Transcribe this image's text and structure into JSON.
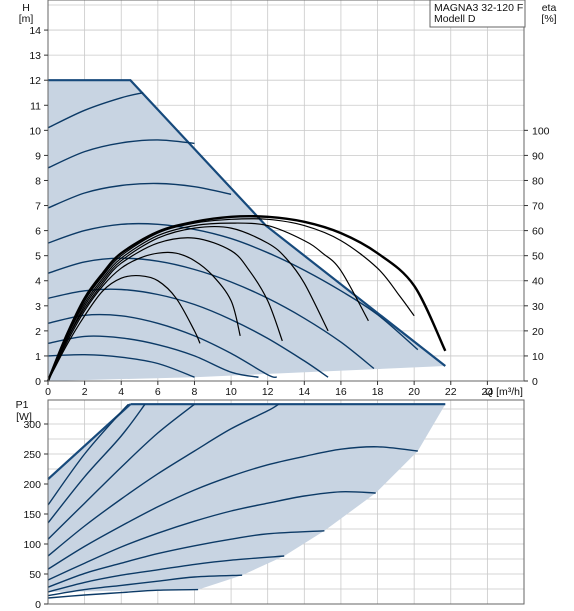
{
  "colors": {
    "area_fill": "#c8d4e2",
    "outline": "#174a7c",
    "curve": "#0c3a66",
    "efficiency": "#000000",
    "grid": "#c9c9c9",
    "frame": "#666666"
  },
  "title_box": {
    "line1": "MAGNA3 32-120 F",
    "line2": "Modell D"
  },
  "chart_data": [
    {
      "type": "line",
      "name": "head",
      "xlabel": "Q [m³/h]",
      "ylabel_line1": "H",
      "ylabel_line2": "[m]",
      "y2label_line1": "eta",
      "y2label_line2": "[%]",
      "xlim": [
        0,
        26
      ],
      "ylim": [
        0,
        15.2
      ],
      "y2lim": [
        0,
        152
      ],
      "grid": true,
      "x_ticks": [
        "0",
        "2",
        "4",
        "6",
        "8",
        "10",
        "12",
        "14",
        "16",
        "18",
        "20",
        "22",
        "24"
      ],
      "y_ticks": [
        "0",
        "1",
        "2",
        "3",
        "4",
        "5",
        "6",
        "7",
        "8",
        "9",
        "10",
        "11",
        "12",
        "13",
        "14"
      ],
      "y2_ticks": [
        "0",
        "10",
        "20",
        "30",
        "40",
        "50",
        "60",
        "70",
        "80",
        "90",
        "100"
      ],
      "operating_area": [
        [
          0,
          0
        ],
        [
          0,
          12
        ],
        [
          4.5,
          12
        ],
        [
          11.9,
          6.2
        ],
        [
          21.7,
          0.6
        ],
        [
          8,
          0.15
        ],
        [
          0,
          0
        ]
      ],
      "head_curves": [
        {
          "values": [
            [
              0,
              1.0
            ],
            [
              2,
              1.05
            ],
            [
              4,
              0.95
            ],
            [
              6,
              0.7
            ],
            [
              8,
              0.15
            ]
          ]
        },
        {
          "values": [
            [
              0,
              1.5
            ],
            [
              2,
              1.78
            ],
            [
              4,
              1.72
            ],
            [
              6,
              1.45
            ],
            [
              8,
              1.0
            ],
            [
              10,
              0.35
            ],
            [
              11.5,
              0.15
            ]
          ]
        },
        {
          "values": [
            [
              0,
              2.3
            ],
            [
              2,
              2.62
            ],
            [
              4,
              2.6
            ],
            [
              6,
              2.3
            ],
            [
              8,
              1.8
            ],
            [
              10,
              1.1
            ],
            [
              12,
              0.25
            ],
            [
              12.5,
              0.15
            ]
          ]
        },
        {
          "values": [
            [
              0,
              3.3
            ],
            [
              2,
              3.6
            ],
            [
              4,
              3.65
            ],
            [
              6,
              3.45
            ],
            [
              8,
              3.05
            ],
            [
              10,
              2.45
            ],
            [
              12,
              1.7
            ],
            [
              14,
              0.8
            ],
            [
              15.3,
              0.15
            ]
          ]
        },
        {
          "values": [
            [
              0,
              4.3
            ],
            [
              2,
              4.75
            ],
            [
              4,
              4.9
            ],
            [
              6,
              4.78
            ],
            [
              8,
              4.45
            ],
            [
              10,
              3.95
            ],
            [
              12,
              3.3
            ],
            [
              14,
              2.5
            ],
            [
              16,
              1.55
            ],
            [
              17.8,
              0.5
            ]
          ]
        },
        {
          "values": [
            [
              0,
              5.5
            ],
            [
              2,
              6.0
            ],
            [
              4,
              6.25
            ],
            [
              6,
              6.25
            ],
            [
              8,
              6.05
            ],
            [
              10,
              5.68
            ],
            [
              12,
              5.12
            ],
            [
              14,
              4.42
            ],
            [
              16,
              3.6
            ],
            [
              18,
              2.65
            ],
            [
              20.2,
              1.25
            ]
          ]
        },
        {
          "values": [
            [
              0,
              6.9
            ],
            [
              2,
              7.5
            ],
            [
              4,
              7.8
            ],
            [
              6,
              7.88
            ],
            [
              8,
              7.75
            ],
            [
              10,
              7.45
            ]
          ]
        },
        {
          "values": [
            [
              0,
              8.5
            ],
            [
              2,
              9.15
            ],
            [
              4,
              9.5
            ],
            [
              6,
              9.62
            ],
            [
              8,
              9.48
            ]
          ]
        },
        {
          "values": [
            [
              0,
              10.1
            ],
            [
              2,
              10.8
            ],
            [
              4,
              11.3
            ],
            [
              5.2,
              11.5
            ]
          ]
        }
      ],
      "efficiency_curves": [
        {
          "values": [
            [
              0,
              0
            ],
            [
              1,
              14
            ],
            [
              2,
              26
            ],
            [
              3,
              36
            ],
            [
              4,
              41
            ],
            [
              5,
              42
            ],
            [
              6,
              40
            ],
            [
              7,
              33
            ],
            [
              8,
              20
            ],
            [
              8.3,
              15
            ]
          ]
        },
        {
          "values": [
            [
              0,
              0
            ],
            [
              1,
              15
            ],
            [
              2,
              28
            ],
            [
              3,
              38
            ],
            [
              4,
              45
            ],
            [
              5,
              49
            ],
            [
              6,
              51
            ],
            [
              7,
              51
            ],
            [
              8,
              48
            ],
            [
              9,
              42
            ],
            [
              10,
              32
            ],
            [
              10.5,
              18
            ]
          ]
        },
        {
          "values": [
            [
              0,
              0
            ],
            [
              1,
              16
            ],
            [
              2,
              29
            ],
            [
              3,
              39
            ],
            [
              4,
              47
            ],
            [
              6,
              55
            ],
            [
              8,
              57
            ],
            [
              10,
              52
            ],
            [
              11,
              44
            ],
            [
              12,
              32
            ],
            [
              12.8,
              16
            ]
          ]
        },
        {
          "values": [
            [
              0,
              0
            ],
            [
              1,
              16
            ],
            [
              2,
              30
            ],
            [
              3,
              40
            ],
            [
              4,
              48
            ],
            [
              6,
              57
            ],
            [
              8,
              61
            ],
            [
              10,
              61
            ],
            [
              12,
              55
            ],
            [
              13,
              49
            ],
            [
              14,
              39
            ],
            [
              15.3,
              20
            ]
          ]
        },
        {
          "values": [
            [
              0,
              0
            ],
            [
              1,
              17
            ],
            [
              2,
              31
            ],
            [
              3,
              41
            ],
            [
              4,
              49
            ],
            [
              6,
              58
            ],
            [
              8,
              62
            ],
            [
              10,
              63
            ],
            [
              12,
              62
            ],
            [
              14,
              56
            ],
            [
              15,
              51
            ],
            [
              16,
              44
            ],
            [
              17.5,
              24
            ]
          ]
        },
        {
          "values": [
            [
              0,
              0
            ],
            [
              1,
              17
            ],
            [
              2,
              32
            ],
            [
              3,
              42
            ],
            [
              4,
              50
            ],
            [
              6,
              59
            ],
            [
              8,
              63
            ],
            [
              10,
              64.5
            ],
            [
              12,
              64.5
            ],
            [
              14,
              62
            ],
            [
              16,
              56
            ],
            [
              18,
              45
            ],
            [
              19.2,
              34
            ],
            [
              20,
              26
            ]
          ]
        },
        {
          "values": [
            [
              0,
              0
            ],
            [
              1,
              18
            ],
            [
              2,
              33
            ],
            [
              3,
              43
            ],
            [
              4,
              51
            ],
            [
              6,
              59.5
            ],
            [
              8,
              63.5
            ],
            [
              10,
              65.5
            ],
            [
              12,
              65.5
            ],
            [
              14,
              63.5
            ],
            [
              16,
              59
            ],
            [
              18,
              51
            ],
            [
              20,
              38
            ],
            [
              21.7,
              12
            ]
          ]
        }
      ]
    },
    {
      "type": "line",
      "name": "power",
      "ylabel_line1": "P1",
      "ylabel_line2": "[W]",
      "xlim": [
        0,
        26
      ],
      "ylim": [
        0,
        340
      ],
      "grid": true,
      "y_ticks": [
        "0",
        "50",
        "100",
        "150",
        "200",
        "250",
        "300"
      ],
      "operating_area": [
        [
          0,
          20
        ],
        [
          0,
          208
        ],
        [
          4.5,
          333
        ],
        [
          21.7,
          333
        ],
        [
          20.2,
          255
        ],
        [
          17.9,
          185
        ],
        [
          15.1,
          122
        ],
        [
          12.9,
          80
        ],
        [
          10.6,
          48
        ],
        [
          8.2,
          24
        ],
        [
          0,
          20
        ]
      ],
      "power_curves": [
        {
          "values": [
            [
              0,
              10
            ],
            [
              2,
              15
            ],
            [
              4,
              19
            ],
            [
              6,
              23
            ],
            [
              8.2,
              24
            ]
          ]
        },
        {
          "values": [
            [
              0,
              14
            ],
            [
              2,
              24
            ],
            [
              4,
              31
            ],
            [
              6,
              38
            ],
            [
              8,
              45
            ],
            [
              10.6,
              48
            ]
          ]
        },
        {
          "values": [
            [
              0,
              20
            ],
            [
              2,
              36
            ],
            [
              4,
              48
            ],
            [
              6,
              57
            ],
            [
              8,
              66
            ],
            [
              10,
              73
            ],
            [
              12.9,
              80
            ]
          ]
        },
        {
          "values": [
            [
              0,
              28
            ],
            [
              2,
              51
            ],
            [
              4,
              68
            ],
            [
              6,
              84
            ],
            [
              8,
              97
            ],
            [
              10,
              108
            ],
            [
              12,
              117
            ],
            [
              15.1,
              122
            ]
          ]
        },
        {
          "values": [
            [
              0,
              40
            ],
            [
              2,
              68
            ],
            [
              4,
              95
            ],
            [
              6,
              118
            ],
            [
              8,
              138
            ],
            [
              10,
              155
            ],
            [
              12,
              168
            ],
            [
              14,
              180
            ],
            [
              16,
              187
            ],
            [
              17.9,
              185
            ]
          ]
        },
        {
          "values": [
            [
              0,
              58
            ],
            [
              2,
              96
            ],
            [
              4,
              130
            ],
            [
              6,
              162
            ],
            [
              8,
              190
            ],
            [
              10,
              213
            ],
            [
              12,
              232
            ],
            [
              14,
              246
            ],
            [
              16,
              258
            ],
            [
              18,
              262
            ],
            [
              20.2,
              255
            ]
          ]
        },
        {
          "values": [
            [
              0,
              80
            ],
            [
              2,
              130
            ],
            [
              4,
              175
            ],
            [
              6,
              217
            ],
            [
              8,
              255
            ],
            [
              10,
              292
            ],
            [
              12,
              322
            ],
            [
              12.6,
              333
            ]
          ]
        },
        {
          "values": [
            [
              0,
              108
            ],
            [
              2,
              168
            ],
            [
              4,
              228
            ],
            [
              6,
              285
            ],
            [
              8,
              333
            ]
          ]
        },
        {
          "values": [
            [
              0,
              135
            ],
            [
              2,
              212
            ],
            [
              4,
              280
            ],
            [
              5.3,
              333
            ]
          ]
        },
        {
          "values": [
            [
              0,
              165
            ],
            [
              2,
              250
            ],
            [
              4,
              320
            ],
            [
              4.4,
              333
            ]
          ]
        }
      ],
      "top_line": {
        "values": [
          [
            4.5,
            333
          ],
          [
            21.7,
            333
          ]
        ]
      }
    }
  ]
}
